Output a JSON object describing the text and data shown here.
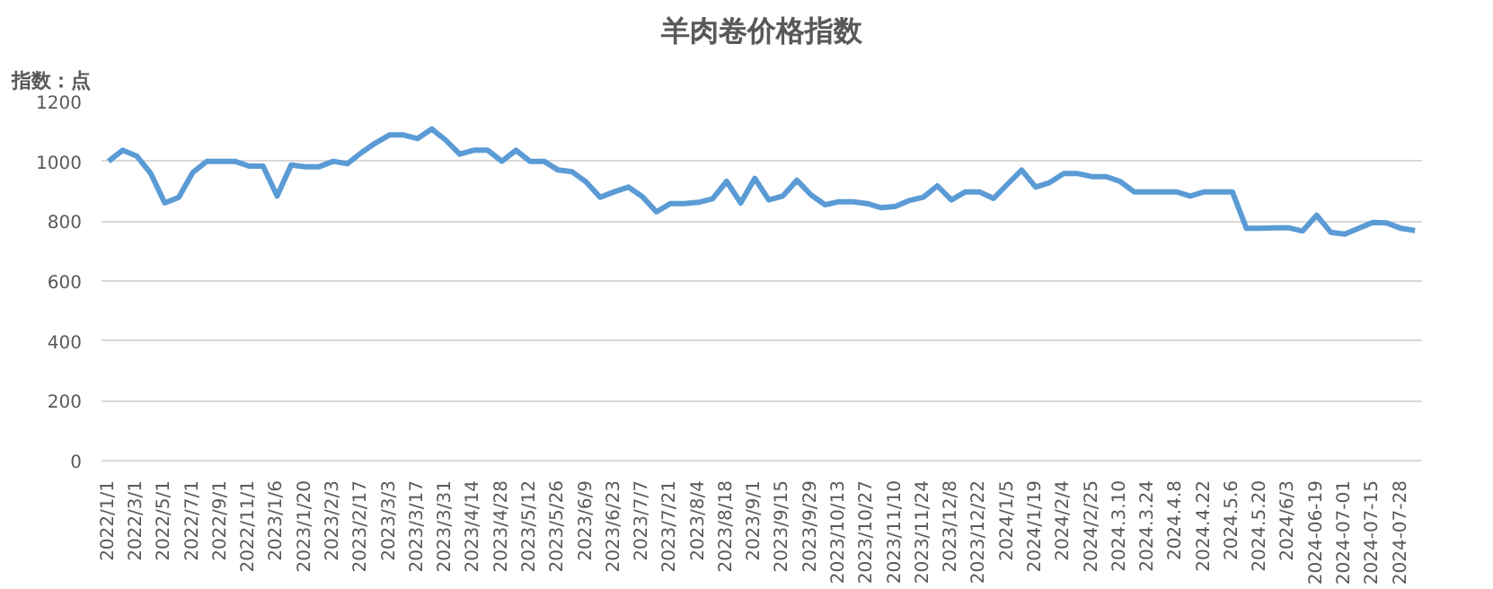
{
  "chart_data": {
    "type": "line",
    "title": "羊肉卷价格指数",
    "annotations": [
      "指数：点"
    ],
    "categories": [
      "2022/1/1",
      null,
      "2022/3/1",
      null,
      "2022/5/1",
      null,
      "2022/7/1",
      null,
      "2022/9/1",
      null,
      "2022/11/1",
      null,
      "2023/1/6",
      null,
      "2023/1/20",
      null,
      "2023/2/3",
      null,
      "2023/2/17",
      null,
      "2023/3/3",
      null,
      "2023/3/17",
      null,
      "2023/3/31",
      null,
      "2023/4/14",
      null,
      "2023/4/28",
      null,
      "2023/5/12",
      null,
      "2023/5/26",
      null,
      "2023/6/9",
      null,
      "2023/6/23",
      null,
      "2023/7/7",
      null,
      "2023/7/21",
      null,
      "2023/8/4",
      null,
      "2023/8/18",
      null,
      "2023/9/1",
      null,
      "2023/9/15",
      null,
      "2023/9/29",
      null,
      "2023/10/13",
      null,
      "2023/10/27",
      null,
      "2023/11/10",
      null,
      "2023/11/24",
      null,
      "2023/12/8",
      null,
      "2023/12/22",
      null,
      "2024/1/5",
      null,
      "2024/1/19",
      null,
      "2024/2/4",
      null,
      "2024/2/25",
      null,
      "2024.3.10",
      null,
      "2024.3.24",
      null,
      "2024.4.8",
      null,
      "2024.4.22",
      null,
      "2024.5.6",
      null,
      "2024.5.20",
      null,
      "2024/6/3",
      null,
      "2024-06-19",
      null,
      "2024-07-01",
      null,
      "2024-07-15",
      null,
      "2024-07-28",
      null
    ],
    "series": [
      {
        "color": "#5b9bd5",
        "values": [
          1000,
          1037,
          1018,
          960,
          861,
          880,
          963,
          1000,
          1000,
          1000,
          984,
          984,
          884,
          988,
          982,
          982,
          1000,
          992,
          1029,
          1061,
          1088,
          1088,
          1076,
          1108,
          1071,
          1024,
          1037,
          1037,
          1000,
          1037,
          1000,
          1000,
          971,
          965,
          931,
          880,
          898,
          914,
          882,
          831,
          859,
          859,
          863,
          875,
          933,
          861,
          943,
          871,
          884,
          937,
          888,
          855,
          865,
          865,
          859,
          845,
          849,
          869,
          880,
          918,
          871,
          898,
          898,
          876,
          924,
          971,
          914,
          929,
          959,
          959,
          949,
          949,
          933,
          898,
          898,
          898,
          898,
          884,
          898,
          898,
          898,
          776,
          776,
          778,
          778,
          767,
          820,
          763,
          757,
          776,
          796,
          794,
          776,
          769
        ]
      }
    ],
    "ylim": [
      0,
      1200
    ],
    "yticks": [
      0,
      200,
      400,
      600,
      800,
      1000,
      1200
    ],
    "grid": "y",
    "marker": "none",
    "line_style": "solid"
  }
}
